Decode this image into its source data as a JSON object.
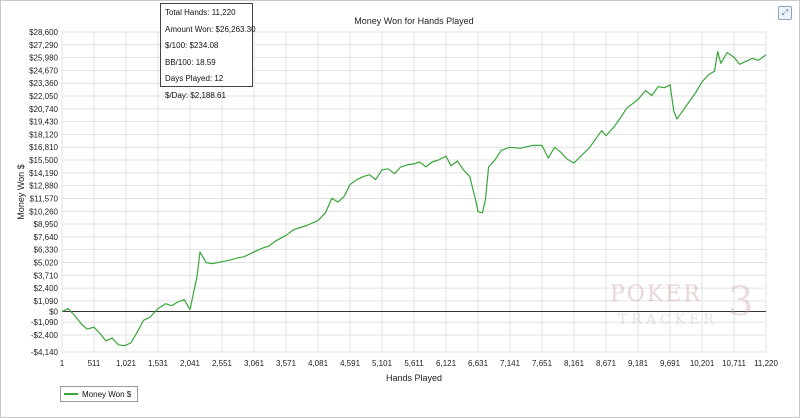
{
  "expand_icon": "expand-icon",
  "tooltip": {
    "lines": [
      "Total Hands: 11,220",
      "Amount Won: $26,263.30",
      "$/100: $234.08",
      "BB/100: 18.59",
      "Days Played: 12",
      "$/Day: $2,188.61"
    ]
  },
  "watermark": {
    "top": "POKER",
    "bottom": "TRACKER",
    "numeral": "3"
  },
  "chart_data": {
    "type": "line",
    "title": "Money Won for Hands Played",
    "xlabel": "Hands Played",
    "ylabel": "Money Won $",
    "xlim": [
      1,
      11220
    ],
    "ylim": [
      -4140,
      28600
    ],
    "grid": true,
    "legend_position": "bottom-left",
    "x_ticks": [
      1,
      511,
      1021,
      1531,
      2041,
      2551,
      3061,
      3571,
      4081,
      4591,
      5101,
      5611,
      6121,
      6631,
      7141,
      7651,
      8161,
      8671,
      9181,
      9691,
      10201,
      10711,
      11220
    ],
    "x_tick_labels": [
      "1",
      "511",
      "1,021",
      "1,531",
      "2,041",
      "2,551",
      "3,061",
      "3,571",
      "4,081",
      "4,591",
      "5,101",
      "5,611",
      "6,121",
      "6,631",
      "7,141",
      "7,651",
      "8,161",
      "8,671",
      "9,181",
      "9,691",
      "10,201",
      "10,711",
      "11,220"
    ],
    "y_ticks": [
      -4140,
      -2400,
      -1090,
      0,
      1090,
      2400,
      3710,
      5020,
      6330,
      7640,
      8950,
      10260,
      11570,
      12880,
      14190,
      15500,
      16810,
      18120,
      19430,
      20740,
      22050,
      23360,
      24670,
      25980,
      27290,
      28600
    ],
    "y_tick_labels": [
      "-$4,140",
      "-$2,400",
      "-$1,090",
      "$0",
      "$1,090",
      "$2,400",
      "$3,710",
      "$5,020",
      "$6,330",
      "$7,640",
      "$8,950",
      "$10,260",
      "$11,570",
      "$12,880",
      "$14,190",
      "$15,500",
      "$16,810",
      "$18,120",
      "$19,430",
      "$20,740",
      "$22,050",
      "$23,360",
      "$24,670",
      "$25,980",
      "$27,290",
      "$28,600"
    ],
    "series": [
      {
        "name": "Money Won $",
        "color": "#3aa63a",
        "x": [
          1,
          100,
          200,
          300,
          400,
          511,
          600,
          700,
          800,
          900,
          1000,
          1100,
          1200,
          1300,
          1400,
          1531,
          1650,
          1750,
          1850,
          1950,
          2041,
          2100,
          2150,
          2200,
          2300,
          2400,
          2551,
          2700,
          2800,
          2900,
          3061,
          3200,
          3300,
          3400,
          3571,
          3700,
          3800,
          3900,
          4081,
          4200,
          4300,
          4400,
          4500,
          4591,
          4700,
          4800,
          4900,
          5000,
          5101,
          5200,
          5300,
          5400,
          5500,
          5611,
          5700,
          5800,
          5900,
          6000,
          6121,
          6200,
          6300,
          6400,
          6500,
          6600,
          6631,
          6700,
          6750,
          6800,
          6900,
          7000,
          7141,
          7300,
          7500,
          7651,
          7750,
          7850,
          7950,
          8050,
          8161,
          8300,
          8400,
          8500,
          8600,
          8671,
          8800,
          8900,
          9000,
          9181,
          9300,
          9400,
          9500,
          9600,
          9691,
          9750,
          9800,
          9900,
          10000,
          10100,
          10201,
          10300,
          10400,
          10450,
          10500,
          10600,
          10711,
          10800,
          10900,
          11000,
          11100,
          11220
        ],
        "y": [
          0,
          300,
          -400,
          -1200,
          -1800,
          -1600,
          -2200,
          -3000,
          -2700,
          -3400,
          -3500,
          -3200,
          -2100,
          -900,
          -600,
          300,
          800,
          600,
          1000,
          1200,
          200,
          2000,
          3500,
          6100,
          5000,
          4900,
          5100,
          5300,
          5500,
          5600,
          6100,
          6500,
          6700,
          7200,
          7800,
          8400,
          8600,
          8800,
          9300,
          10100,
          11600,
          11200,
          11800,
          13000,
          13500,
          13800,
          14000,
          13500,
          14500,
          14600,
          14100,
          14800,
          15000,
          15100,
          15300,
          14800,
          15300,
          15500,
          15900,
          14900,
          15400,
          14500,
          13800,
          11200,
          10200,
          10100,
          11500,
          14800,
          15500,
          16500,
          16800,
          16700,
          17000,
          17000,
          15700,
          16800,
          16300,
          15600,
          15200,
          16100,
          16700,
          17600,
          18500,
          18000,
          18900,
          19800,
          20800,
          21700,
          22600,
          22100,
          23000,
          22900,
          23200,
          20500,
          19700,
          20600,
          21500,
          22400,
          23500,
          24200,
          24600,
          26600,
          25400,
          26500,
          26000,
          25300,
          25600,
          25900,
          25700,
          26263
        ]
      }
    ]
  }
}
